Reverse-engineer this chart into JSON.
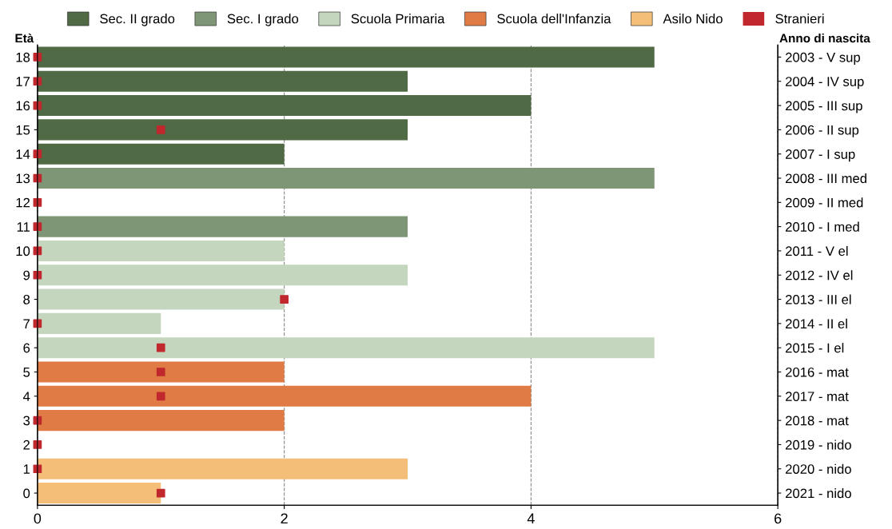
{
  "chart_data": {
    "type": "bar",
    "orientation": "horizontal",
    "ylabel": "Età",
    "y2label": "Anno di nascita",
    "categories": [
      "18",
      "17",
      "16",
      "15",
      "14",
      "13",
      "12",
      "11",
      "10",
      "9",
      "8",
      "7",
      "6",
      "5",
      "4",
      "3",
      "2",
      "1",
      "0"
    ],
    "y2_categories": [
      "2003 - V sup",
      "2004 - IV sup",
      "2005 - III sup",
      "2006 - II sup",
      "2007 - I sup",
      "2008 - III med",
      "2009 - II med",
      "2010 - I med",
      "2011 - V el",
      "2012 - IV el",
      "2013 - III el",
      "2014 - II el",
      "2015 - I el",
      "2016 - mat",
      "2017 - mat",
      "2018 - mat",
      "2019 - nido",
      "2020 - nido",
      "2021 - nido"
    ],
    "series": [
      {
        "name": "Sec. II grado",
        "color": "#4f6a45",
        "values": [
          5,
          3,
          4,
          3,
          2,
          null,
          null,
          null,
          null,
          null,
          null,
          null,
          null,
          null,
          null,
          null,
          null,
          null,
          null
        ]
      },
      {
        "name": "Sec. I grado",
        "color": "#7e9676",
        "values": [
          null,
          null,
          null,
          null,
          null,
          5,
          0,
          3,
          null,
          null,
          null,
          null,
          null,
          null,
          null,
          null,
          null,
          null,
          null
        ]
      },
      {
        "name": "Scuola Primaria",
        "color": "#c5d6bf",
        "values": [
          null,
          null,
          null,
          null,
          null,
          null,
          null,
          null,
          2,
          3,
          2,
          1,
          5,
          null,
          null,
          null,
          null,
          null,
          null
        ]
      },
      {
        "name": "Scuola dell'Infanzia",
        "color": "#e07b45",
        "values": [
          null,
          null,
          null,
          null,
          null,
          null,
          null,
          null,
          null,
          null,
          null,
          null,
          null,
          2,
          4,
          2,
          null,
          null,
          null
        ]
      },
      {
        "name": "Asilo Nido",
        "color": "#f4bd78",
        "values": [
          null,
          null,
          null,
          null,
          null,
          null,
          null,
          null,
          null,
          null,
          null,
          null,
          null,
          null,
          null,
          null,
          0,
          3,
          1
        ]
      },
      {
        "name": "Stranieri",
        "type": "scatter",
        "marker": "square",
        "color": "#c0282e",
        "values": [
          0,
          0,
          0,
          1,
          0,
          0,
          0,
          0,
          0,
          0,
          2,
          0,
          1,
          1,
          1,
          0,
          0,
          0,
          1
        ]
      }
    ],
    "xlim": [
      0,
      6
    ],
    "xticks": [
      0,
      2,
      4,
      6
    ],
    "grid": "x",
    "legend": "top"
  }
}
